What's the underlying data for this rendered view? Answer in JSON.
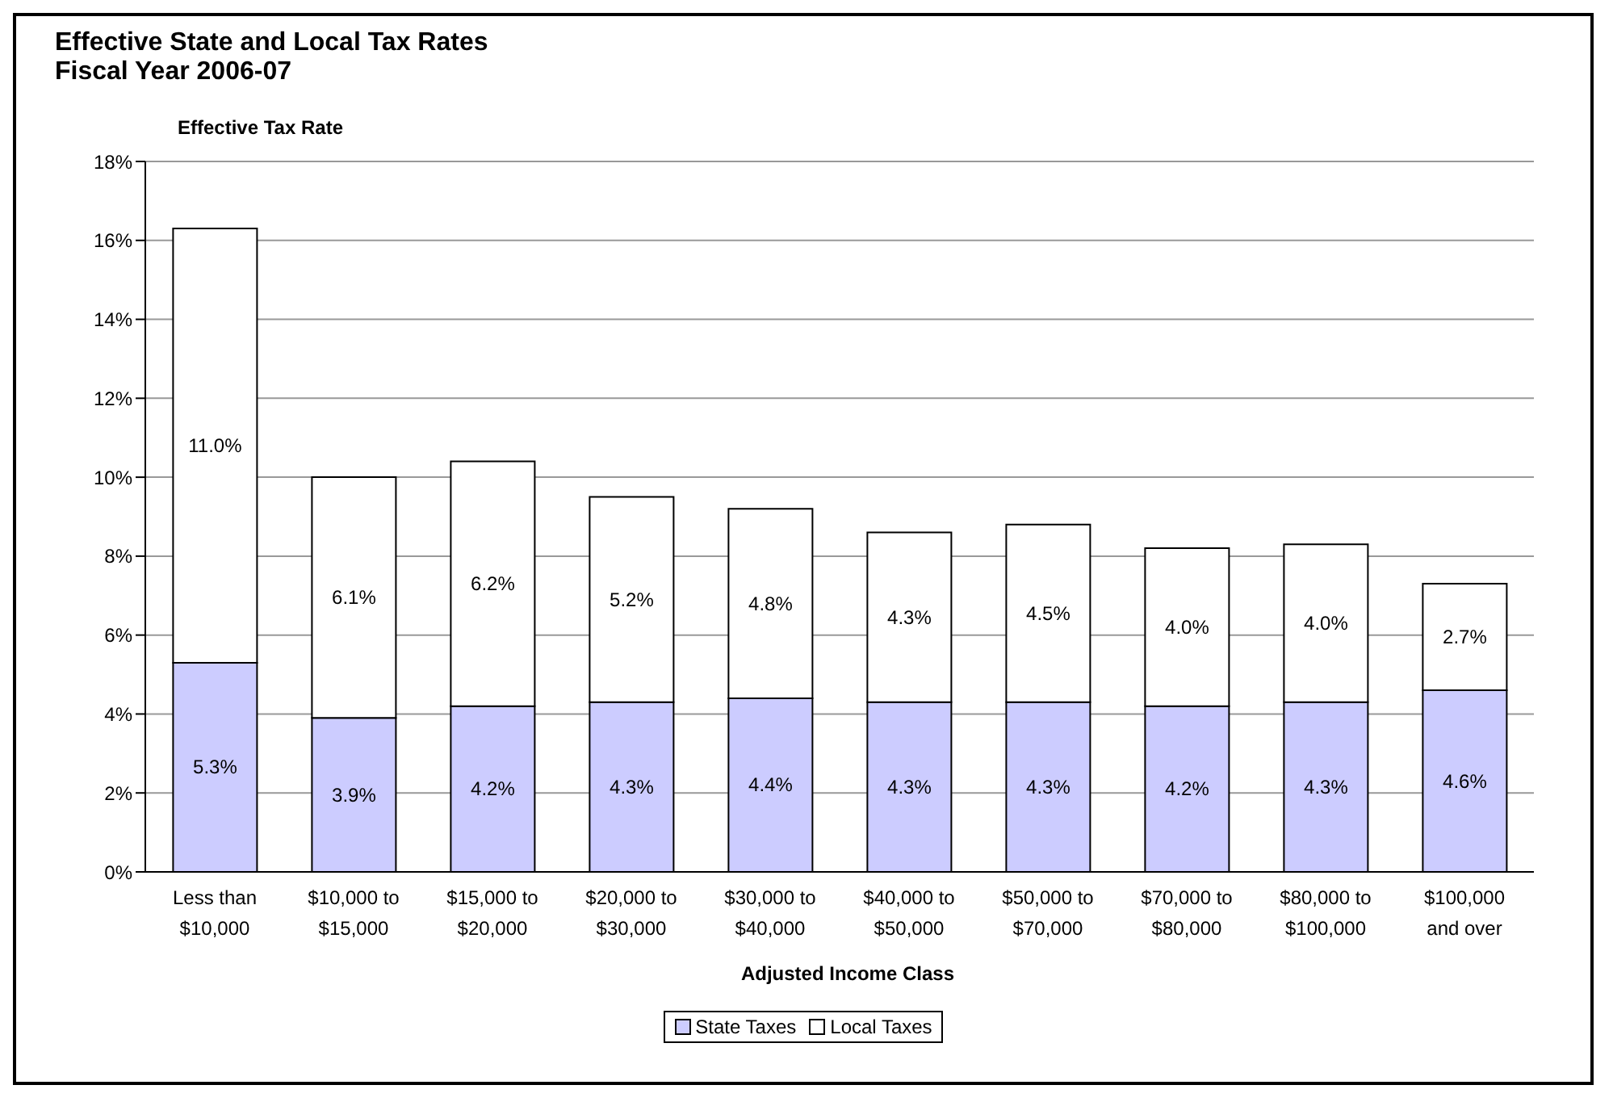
{
  "chart_data": {
    "type": "bar",
    "title": "Effective State and Local Tax Rates",
    "subtitle": "Fiscal Year 2006-07",
    "xlabel": "Adjusted Income Class",
    "ylabel": "Effective Tax Rate",
    "categories": [
      "Less than $10,000",
      "$10,000 to $15,000",
      "$15,000 to $20,000",
      "$20,000 to $30,000",
      "$30,000 to $40,000",
      "$40,000 to $50,000",
      "$50,000 to $70,000",
      "$70,000 to $80,000",
      "$80,000 to $100,000",
      "$100,000 and over"
    ],
    "stacked": true,
    "series": [
      {
        "name": "State Taxes",
        "color": "#ccccff",
        "values": [
          5.3,
          3.9,
          4.2,
          4.3,
          4.4,
          4.3,
          4.3,
          4.2,
          4.3,
          4.6
        ],
        "value_labels": [
          "5.3%",
          "3.9%",
          "4.2%",
          "4.3%",
          "4.4%",
          "4.3%",
          "4.3%",
          "4.2%",
          "4.3%",
          "4.6%"
        ]
      },
      {
        "name": "Local Taxes",
        "color": "#ffffff",
        "values": [
          11.0,
          6.1,
          6.2,
          5.2,
          4.8,
          4.3,
          4.5,
          4.0,
          4.0,
          2.7
        ],
        "value_labels": [
          "11.0%",
          "6.1%",
          "6.2%",
          "5.2%",
          "4.8%",
          "4.3%",
          "4.5%",
          "4.0%",
          "4.0%",
          "2.7%"
        ]
      }
    ],
    "ylim": [
      0,
      18
    ],
    "yticks": [
      {
        "value": 0,
        "label": "0%"
      },
      {
        "value": 2,
        "label": "2%"
      },
      {
        "value": 4,
        "label": "4%"
      },
      {
        "value": 6,
        "label": "6%"
      },
      {
        "value": 8,
        "label": "8%"
      },
      {
        "value": 10,
        "label": "10%"
      },
      {
        "value": 12,
        "label": "12%"
      },
      {
        "value": 14,
        "label": "14%"
      },
      {
        "value": 16,
        "label": "16%"
      },
      {
        "value": 18,
        "label": "18%"
      }
    ],
    "grid": "y",
    "legend": "bottom"
  }
}
